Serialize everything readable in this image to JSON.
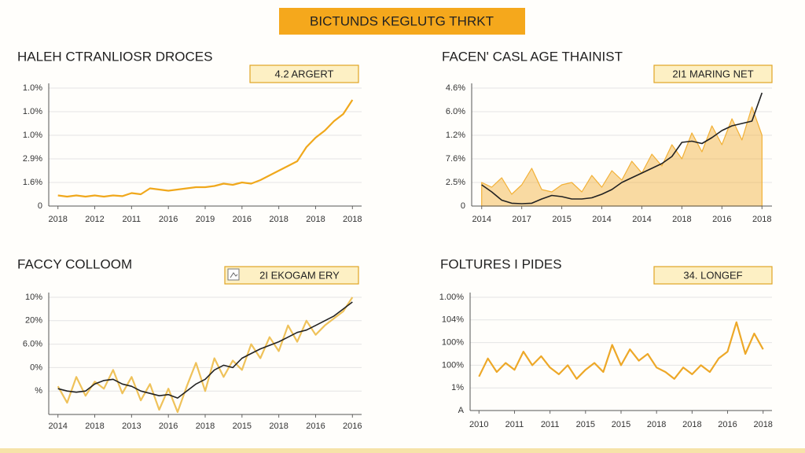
{
  "header": {
    "title": "BICTUNDS KEGLUTG THRKT"
  },
  "chart_data": [
    {
      "type": "line",
      "title": "HALEH CTRANLIOSR DROCES",
      "annotation": "4.2 ARGERT",
      "xlim": [
        -0.25,
        8.25
      ],
      "xticks": [
        {
          "value": 0,
          "label": "2018"
        },
        {
          "value": 1,
          "label": "2012"
        },
        {
          "value": 2,
          "label": "2011"
        },
        {
          "value": 3,
          "label": "2016"
        },
        {
          "value": 4,
          "label": "2019"
        },
        {
          "value": 5,
          "label": "2016"
        },
        {
          "value": 6,
          "label": "2018"
        },
        {
          "value": 7,
          "label": "2018"
        },
        {
          "value": 8,
          "label": "2018"
        }
      ],
      "ylim": [
        0,
        5
      ],
      "yticks": [
        0,
        {
          "value": 1,
          "label": "1.6%"
        },
        {
          "value": 2,
          "label": "2.9%"
        },
        {
          "value": 3,
          "label": "1.0%"
        },
        {
          "value": 4,
          "label": "1.0%"
        },
        {
          "value": 5,
          "label": "1.0%"
        }
      ],
      "grid": true,
      "x": [
        0,
        0.25,
        0.5,
        0.75,
        1,
        1.25,
        1.5,
        1.75,
        2,
        2.25,
        2.5,
        2.75,
        3,
        3.25,
        3.5,
        3.75,
        4,
        4.25,
        4.5,
        4.75,
        5,
        5.25,
        5.5,
        5.75,
        6,
        6.25,
        6.5,
        6.75,
        7,
        7.25,
        7.5,
        7.75,
        8
      ],
      "series": [
        {
          "color": "#f0a81c",
          "style": "line",
          "values": [
            0.45,
            0.4,
            0.45,
            0.4,
            0.45,
            0.4,
            0.45,
            0.42,
            0.55,
            0.5,
            0.75,
            0.7,
            0.65,
            0.7,
            0.75,
            0.8,
            0.8,
            0.85,
            0.95,
            0.9,
            1.0,
            0.95,
            1.1,
            1.3,
            1.5,
            1.7,
            1.9,
            2.5,
            2.9,
            3.2,
            3.6,
            3.9,
            4.5
          ]
        }
      ]
    },
    {
      "type": "line",
      "title": "FACEN' CASL AGE THAINIST",
      "annotation": "2I1 MARING NET",
      "xlim": [
        -0.25,
        7.25
      ],
      "xticks": [
        {
          "value": 0,
          "label": "2014"
        },
        {
          "value": 1,
          "label": "2017"
        },
        {
          "value": 2,
          "label": "2015"
        },
        {
          "value": 3,
          "label": "2014"
        },
        {
          "value": 4,
          "label": "2014"
        },
        {
          "value": 5,
          "label": "2018"
        },
        {
          "value": 6,
          "label": "2016"
        },
        {
          "value": 7,
          "label": "2018"
        }
      ],
      "ylim": [
        0,
        5
      ],
      "yticks": [
        0,
        {
          "value": 1,
          "label": "2.5%"
        },
        {
          "value": 2,
          "label": "7.6%"
        },
        {
          "value": 3,
          "label": "1.2%"
        },
        {
          "value": 4,
          "label": "6.0%"
        },
        {
          "value": 5,
          "label": "4.6%"
        }
      ],
      "grid": true,
      "x": [
        0,
        0.25,
        0.5,
        0.75,
        1,
        1.25,
        1.5,
        1.75,
        2,
        2.25,
        2.5,
        2.75,
        3,
        3.25,
        3.5,
        3.75,
        4,
        4.25,
        4.5,
        4.75,
        5,
        5.25,
        5.5,
        5.75,
        6,
        6.25,
        6.5,
        6.75,
        7
      ],
      "series": [
        {
          "color": "#f2b035",
          "style": "area",
          "values": [
            1.0,
            0.8,
            1.2,
            0.5,
            0.9,
            1.6,
            0.7,
            0.6,
            0.9,
            1.0,
            0.6,
            1.3,
            0.8,
            1.5,
            1.1,
            1.9,
            1.4,
            2.2,
            1.7,
            2.6,
            2.0,
            3.1,
            2.3,
            3.4,
            2.6,
            3.7,
            2.8,
            4.2,
            3.0
          ]
        },
        {
          "color": "#222222",
          "style": "line",
          "values": [
            0.9,
            0.6,
            0.25,
            0.12,
            0.1,
            0.12,
            0.3,
            0.45,
            0.4,
            0.3,
            0.3,
            0.35,
            0.5,
            0.7,
            1.0,
            1.2,
            1.4,
            1.6,
            1.8,
            2.1,
            2.7,
            2.75,
            2.65,
            2.9,
            3.2,
            3.4,
            3.5,
            3.6,
            4.8
          ]
        }
      ]
    },
    {
      "type": "line",
      "title": "FACCY COLLOOM",
      "annotation": "2I EKOGAM ERY",
      "xlim": [
        -0.25,
        8.25
      ],
      "xticks": [
        {
          "value": 0,
          "label": "2014"
        },
        {
          "value": 1,
          "label": "2018"
        },
        {
          "value": 2,
          "label": "2013"
        },
        {
          "value": 3,
          "label": "2016"
        },
        {
          "value": 4,
          "label": "2018"
        },
        {
          "value": 5,
          "label": "2015"
        },
        {
          "value": 6,
          "label": "2018"
        },
        {
          "value": 7,
          "label": "2016"
        },
        {
          "value": 8,
          "label": "2016"
        }
      ],
      "ylim": [
        0,
        5
      ],
      "yticks": [
        {
          "value": 1,
          "label": "%"
        },
        {
          "value": 2,
          "label": "0%"
        },
        {
          "value": 3,
          "label": "6.0%"
        },
        {
          "value": 4,
          "label": "20%"
        },
        {
          "value": 5,
          "label": "10%"
        }
      ],
      "grid": true,
      "x": [
        0,
        0.25,
        0.5,
        0.75,
        1,
        1.25,
        1.5,
        1.75,
        2,
        2.25,
        2.5,
        2.75,
        3,
        3.25,
        3.5,
        3.75,
        4,
        4.25,
        4.5,
        4.75,
        5,
        5.25,
        5.5,
        5.75,
        6,
        6.25,
        6.5,
        6.75,
        7,
        7.25,
        7.5,
        7.75,
        8
      ],
      "series": [
        {
          "color": "#efc25a",
          "style": "line",
          "values": [
            1.2,
            0.5,
            1.6,
            0.8,
            1.4,
            1.1,
            1.9,
            0.9,
            1.6,
            0.6,
            1.3,
            0.2,
            1.1,
            0.1,
            1.2,
            2.2,
            1.0,
            2.4,
            1.6,
            2.3,
            1.9,
            3.0,
            2.4,
            3.3,
            2.7,
            3.8,
            3.1,
            4.0,
            3.4,
            3.8,
            4.1,
            4.4,
            5.0
          ]
        },
        {
          "color": "#222222",
          "style": "line",
          "values": [
            1.1,
            1.0,
            0.95,
            1.0,
            1.3,
            1.45,
            1.5,
            1.3,
            1.2,
            1.0,
            0.9,
            0.8,
            0.85,
            0.7,
            1.0,
            1.3,
            1.5,
            1.9,
            2.1,
            2.0,
            2.4,
            2.6,
            2.8,
            2.95,
            3.1,
            3.3,
            3.5,
            3.6,
            3.8,
            4.0,
            4.2,
            4.5,
            4.8
          ]
        }
      ]
    },
    {
      "type": "line",
      "title": "FOLTURES I PIDES",
      "annotation": "34. LONGEF",
      "xlim": [
        -0.25,
        8.25
      ],
      "xticks": [
        {
          "value": 0,
          "label": "2010"
        },
        {
          "value": 1,
          "label": "2011"
        },
        {
          "value": 2,
          "label": "2011"
        },
        {
          "value": 3,
          "label": "2015"
        },
        {
          "value": 4,
          "label": "2015"
        },
        {
          "value": 5,
          "label": "2018"
        },
        {
          "value": 6,
          "label": "2018"
        },
        {
          "value": 7,
          "label": "2016"
        },
        {
          "value": 8,
          "label": "2018"
        }
      ],
      "ylim": [
        0,
        5
      ],
      "yticks": [
        {
          "value": 0,
          "label": "A"
        },
        {
          "value": 1,
          "label": "1%"
        },
        {
          "value": 2,
          "label": "100%"
        },
        {
          "value": 3,
          "label": "100%"
        },
        {
          "value": 4,
          "label": "104%"
        },
        {
          "value": 5,
          "label": "1.00%"
        }
      ],
      "grid": true,
      "x": [
        0,
        0.25,
        0.5,
        0.75,
        1,
        1.25,
        1.5,
        1.75,
        2,
        2.25,
        2.5,
        2.75,
        3,
        3.25,
        3.5,
        3.75,
        4,
        4.25,
        4.5,
        4.75,
        5,
        5.25,
        5.5,
        5.75,
        6,
        6.25,
        6.5,
        6.75,
        7,
        7.25,
        7.5,
        7.75,
        8
      ],
      "series": [
        {
          "color": "#eda828",
          "style": "line",
          "values": [
            1.5,
            2.3,
            1.7,
            2.1,
            1.8,
            2.6,
            2.0,
            2.4,
            1.9,
            1.6,
            2.0,
            1.4,
            1.8,
            2.1,
            1.7,
            2.9,
            2.0,
            2.7,
            2.2,
            2.5,
            1.9,
            1.7,
            1.4,
            1.9,
            1.6,
            2.0,
            1.7,
            2.3,
            2.6,
            3.9,
            2.5,
            3.4,
            2.7
          ]
        }
      ]
    }
  ]
}
